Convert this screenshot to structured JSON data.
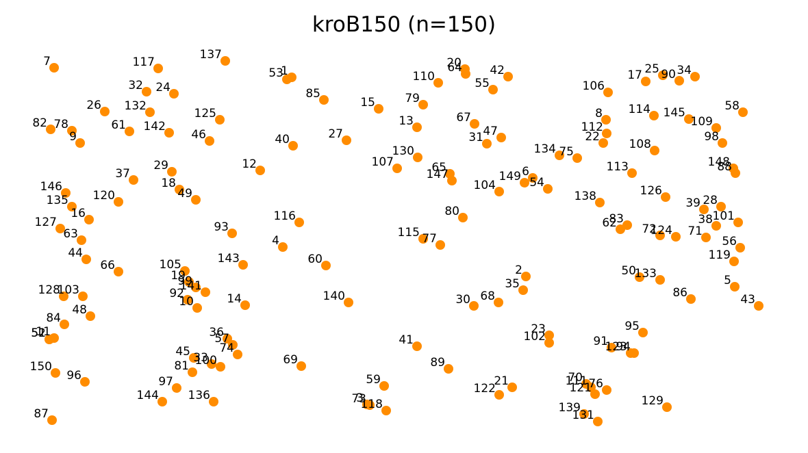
{
  "chart_data": {
    "type": "scatter",
    "title": "kroB150  (n=150)",
    "xlabel": "",
    "ylabel": "",
    "grid": false,
    "axes_visible": false,
    "marker_color": "#FF8C00",
    "xlim": [
      0,
      1180
    ],
    "ylim": [
      0,
      662
    ],
    "points": [
      {
        "label": "1",
        "x": 426,
        "y": 113
      },
      {
        "label": "2",
        "x": 768,
        "y": 404
      },
      {
        "label": "3",
        "x": 536,
        "y": 591
      },
      {
        "label": "4",
        "x": 413,
        "y": 361
      },
      {
        "label": "5",
        "x": 1073,
        "y": 419
      },
      {
        "label": "6",
        "x": 778,
        "y": 260
      },
      {
        "label": "7",
        "x": 79,
        "y": 99
      },
      {
        "label": "8",
        "x": 885,
        "y": 175
      },
      {
        "label": "9",
        "x": 117,
        "y": 209
      },
      {
        "label": "10",
        "x": 288,
        "y": 450
      },
      {
        "label": "11",
        "x": 79,
        "y": 494
      },
      {
        "label": "12",
        "x": 380,
        "y": 249
      },
      {
        "label": "13",
        "x": 609,
        "y": 186
      },
      {
        "label": "14",
        "x": 358,
        "y": 446
      },
      {
        "label": "15",
        "x": 553,
        "y": 159
      },
      {
        "label": "16",
        "x": 130,
        "y": 321
      },
      {
        "label": "17",
        "x": 943,
        "y": 119
      },
      {
        "label": "18",
        "x": 262,
        "y": 277
      },
      {
        "label": "19",
        "x": 276,
        "y": 412
      },
      {
        "label": "20",
        "x": 679,
        "y": 101
      },
      {
        "label": "21",
        "x": 748,
        "y": 566
      },
      {
        "label": "22",
        "x": 881,
        "y": 209
      },
      {
        "label": "23",
        "x": 802,
        "y": 490
      },
      {
        "label": "24",
        "x": 254,
        "y": 137
      },
      {
        "label": "25",
        "x": 968,
        "y": 110
      },
      {
        "label": "26",
        "x": 153,
        "y": 163
      },
      {
        "label": "27",
        "x": 506,
        "y": 205
      },
      {
        "label": "28",
        "x": 1053,
        "y": 302
      },
      {
        "label": "29",
        "x": 251,
        "y": 251
      },
      {
        "label": "30",
        "x": 692,
        "y": 447
      },
      {
        "label": "31",
        "x": 711,
        "y": 210
      },
      {
        "label": "32",
        "x": 214,
        "y": 134
      },
      {
        "label": "33",
        "x": 309,
        "y": 532
      },
      {
        "label": "34",
        "x": 1015,
        "y": 112
      },
      {
        "label": "35",
        "x": 764,
        "y": 424
      },
      {
        "label": "36",
        "x": 332,
        "y": 495
      },
      {
        "label": "37",
        "x": 195,
        "y": 263
      },
      {
        "label": "38",
        "x": 1046,
        "y": 330
      },
      {
        "label": "39",
        "x": 1028,
        "y": 306
      },
      {
        "label": "40",
        "x": 428,
        "y": 213
      },
      {
        "label": "41",
        "x": 609,
        "y": 506
      },
      {
        "label": "42",
        "x": 742,
        "y": 112
      },
      {
        "label": "43",
        "x": 1108,
        "y": 447
      },
      {
        "label": "44",
        "x": 126,
        "y": 379
      },
      {
        "label": "45",
        "x": 283,
        "y": 523
      },
      {
        "label": "46",
        "x": 306,
        "y": 206
      },
      {
        "label": "47",
        "x": 732,
        "y": 201
      },
      {
        "label": "48",
        "x": 132,
        "y": 462
      },
      {
        "label": "49",
        "x": 286,
        "y": 292
      },
      {
        "label": "50",
        "x": 934,
        "y": 405
      },
      {
        "label": "51",
        "x": 72,
        "y": 496
      },
      {
        "label": "52",
        "x": 72,
        "y": 496
      },
      {
        "label": "53",
        "x": 419,
        "y": 116
      },
      {
        "label": "54",
        "x": 800,
        "y": 276
      },
      {
        "label": "55",
        "x": 720,
        "y": 131
      },
      {
        "label": "56",
        "x": 1081,
        "y": 362
      },
      {
        "label": "57",
        "x": 340,
        "y": 504
      },
      {
        "label": "58",
        "x": 1085,
        "y": 164
      },
      {
        "label": "59",
        "x": 561,
        "y": 564
      },
      {
        "label": "60",
        "x": 476,
        "y": 388
      },
      {
        "label": "61",
        "x": 189,
        "y": 192
      },
      {
        "label": "62",
        "x": 906,
        "y": 335
      },
      {
        "label": "63",
        "x": 119,
        "y": 351
      },
      {
        "label": "64",
        "x": 680,
        "y": 108
      },
      {
        "label": "65",
        "x": 657,
        "y": 254
      },
      {
        "label": "66",
        "x": 173,
        "y": 397
      },
      {
        "label": "67",
        "x": 693,
        "y": 181
      },
      {
        "label": "68",
        "x": 728,
        "y": 442
      },
      {
        "label": "69",
        "x": 440,
        "y": 535
      },
      {
        "label": "70",
        "x": 856,
        "y": 561
      },
      {
        "label": "71",
        "x": 1031,
        "y": 347
      },
      {
        "label": "72",
        "x": 964,
        "y": 344
      },
      {
        "label": "73",
        "x": 540,
        "y": 592
      },
      {
        "label": "74",
        "x": 347,
        "y": 518
      },
      {
        "label": "75",
        "x": 843,
        "y": 231
      },
      {
        "label": "76",
        "x": 886,
        "y": 570
      },
      {
        "label": "77",
        "x": 643,
        "y": 358
      },
      {
        "label": "78",
        "x": 105,
        "y": 191
      },
      {
        "label": "79",
        "x": 618,
        "y": 153
      },
      {
        "label": "80",
        "x": 676,
        "y": 318
      },
      {
        "label": "81",
        "x": 281,
        "y": 544
      },
      {
        "label": "82",
        "x": 74,
        "y": 189
      },
      {
        "label": "83",
        "x": 916,
        "y": 329
      },
      {
        "label": "84",
        "x": 94,
        "y": 474
      },
      {
        "label": "85",
        "x": 473,
        "y": 146
      },
      {
        "label": "86",
        "x": 1009,
        "y": 437
      },
      {
        "label": "87",
        "x": 76,
        "y": 614
      },
      {
        "label": "88",
        "x": 1074,
        "y": 253
      },
      {
        "label": "89",
        "x": 655,
        "y": 539
      },
      {
        "label": "90",
        "x": 992,
        "y": 118
      },
      {
        "label": "91",
        "x": 893,
        "y": 508
      },
      {
        "label": "92",
        "x": 274,
        "y": 438
      },
      {
        "label": "93",
        "x": 339,
        "y": 341
      },
      {
        "label": "94",
        "x": 926,
        "y": 516
      },
      {
        "label": "95",
        "x": 939,
        "y": 486
      },
      {
        "label": "96",
        "x": 124,
        "y": 558
      },
      {
        "label": "97",
        "x": 258,
        "y": 567
      },
      {
        "label": "98",
        "x": 1055,
        "y": 209
      },
      {
        "label": "99",
        "x": 286,
        "y": 420
      },
      {
        "label": "100",
        "x": 322,
        "y": 536
      },
      {
        "label": "101",
        "x": 1078,
        "y": 325
      },
      {
        "label": "102",
        "x": 802,
        "y": 501
      },
      {
        "label": "103",
        "x": 121,
        "y": 433
      },
      {
        "label": "104",
        "x": 729,
        "y": 280
      },
      {
        "label": "105",
        "x": 270,
        "y": 396
      },
      {
        "label": "106",
        "x": 888,
        "y": 135
      },
      {
        "label": "107",
        "x": 580,
        "y": 246
      },
      {
        "label": "108",
        "x": 956,
        "y": 220
      },
      {
        "label": "109",
        "x": 1046,
        "y": 187
      },
      {
        "label": "110",
        "x": 640,
        "y": 121
      },
      {
        "label": "111",
        "x": 863,
        "y": 566
      },
      {
        "label": "112",
        "x": 886,
        "y": 195
      },
      {
        "label": "113",
        "x": 923,
        "y": 253
      },
      {
        "label": "114",
        "x": 955,
        "y": 169
      },
      {
        "label": "115",
        "x": 618,
        "y": 349
      },
      {
        "label": "116",
        "x": 437,
        "y": 325
      },
      {
        "label": "117",
        "x": 231,
        "y": 100
      },
      {
        "label": "118",
        "x": 564,
        "y": 600
      },
      {
        "label": "119",
        "x": 1072,
        "y": 382
      },
      {
        "label": "120",
        "x": 173,
        "y": 295
      },
      {
        "label": "121",
        "x": 869,
        "y": 576
      },
      {
        "label": "122",
        "x": 729,
        "y": 577
      },
      {
        "label": "123",
        "x": 921,
        "y": 516
      },
      {
        "label": "124",
        "x": 987,
        "y": 346
      },
      {
        "label": "125",
        "x": 321,
        "y": 175
      },
      {
        "label": "126",
        "x": 972,
        "y": 288
      },
      {
        "label": "127",
        "x": 88,
        "y": 334
      },
      {
        "label": "128",
        "x": 93,
        "y": 433
      },
      {
        "label": "129",
        "x": 974,
        "y": 595
      },
      {
        "label": "130",
        "x": 610,
        "y": 230
      },
      {
        "label": "131",
        "x": 873,
        "y": 616
      },
      {
        "label": "132",
        "x": 219,
        "y": 164
      },
      {
        "label": "133",
        "x": 964,
        "y": 409
      },
      {
        "label": "134",
        "x": 817,
        "y": 227
      },
      {
        "label": "135",
        "x": 105,
        "y": 302
      },
      {
        "label": "136",
        "x": 312,
        "y": 587
      },
      {
        "label": "137",
        "x": 329,
        "y": 89
      },
      {
        "label": "138",
        "x": 876,
        "y": 296
      },
      {
        "label": "139",
        "x": 853,
        "y": 605
      },
      {
        "label": "140",
        "x": 509,
        "y": 442
      },
      {
        "label": "141",
        "x": 300,
        "y": 427
      },
      {
        "label": "142",
        "x": 247,
        "y": 194
      },
      {
        "label": "143",
        "x": 355,
        "y": 387
      },
      {
        "label": "144",
        "x": 237,
        "y": 587
      },
      {
        "label": "145",
        "x": 1006,
        "y": 174
      },
      {
        "label": "146",
        "x": 96,
        "y": 282
      },
      {
        "label": "147",
        "x": 660,
        "y": 264
      },
      {
        "label": "148",
        "x": 1071,
        "y": 246
      },
      {
        "label": "149",
        "x": 766,
        "y": 267
      },
      {
        "label": "150",
        "x": 81,
        "y": 545
      }
    ]
  }
}
